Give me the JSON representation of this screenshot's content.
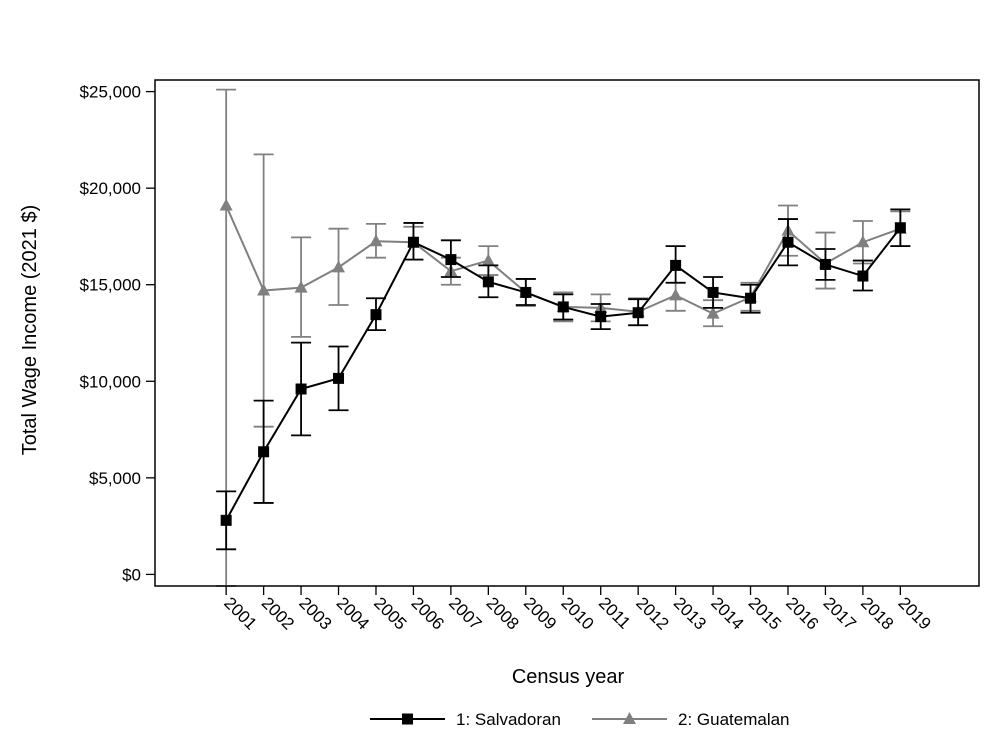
{
  "chart_data": {
    "type": "line",
    "xlabel": "Census year",
    "ylabel": "Total Wage Income (2021 $)",
    "x": [
      2001,
      2002,
      2003,
      2004,
      2005,
      2006,
      2007,
      2008,
      2009,
      2010,
      2011,
      2012,
      2013,
      2014,
      2015,
      2016,
      2017,
      2018,
      2019
    ],
    "x_tick_labels": [
      "2001",
      "2002",
      "2003",
      "2004",
      "2005",
      "2006",
      "2007",
      "2008",
      "2009",
      "2010",
      "2011",
      "2012",
      "2013",
      "2014",
      "2015",
      "2016",
      "2017",
      "2018",
      "2019"
    ],
    "xlim": [
      1999.1,
      2021.1
    ],
    "ylim": [
      -600,
      25600
    ],
    "y_ticks": [
      0,
      5000,
      10000,
      15000,
      20000,
      25000
    ],
    "y_tick_labels": [
      "$0",
      "$5,000",
      "$10,000",
      "$15,000",
      "$20,000",
      "$25,000"
    ],
    "grid": false,
    "legend_position": "bottom",
    "series": [
      {
        "name": "1: Salvadoran",
        "marker": "square",
        "color": "#000000",
        "values": [
          2800,
          6350,
          9600,
          10150,
          13450,
          17200,
          16300,
          15150,
          14600,
          13850,
          13350,
          13550,
          16000,
          14600,
          14300,
          17200,
          16050,
          15450,
          17950
        ],
        "lower": [
          1300,
          3700,
          7200,
          8500,
          12650,
          16300,
          15400,
          14350,
          13950,
          13200,
          12700,
          12900,
          15100,
          13800,
          13550,
          16000,
          15250,
          14700,
          17000
        ],
        "upper": [
          4300,
          9000,
          12000,
          11800,
          14300,
          18200,
          17300,
          16000,
          15300,
          14500,
          14000,
          14250,
          17000,
          15400,
          15000,
          18400,
          16850,
          16250,
          18900
        ]
      },
      {
        "name": "2: Guatemalan",
        "marker": "triangle",
        "color": "#808080",
        "values": [
          19100,
          14700,
          14850,
          15900,
          17250,
          17200,
          15700,
          16250,
          14600,
          13850,
          13800,
          13600,
          14450,
          13500,
          14350,
          17800,
          16100,
          17200,
          17900
        ],
        "lower": [
          -600,
          7650,
          12300,
          13950,
          16400,
          16300,
          15000,
          15500,
          13900,
          13100,
          13100,
          12900,
          13650,
          12850,
          13650,
          16500,
          14800,
          16100,
          17000
        ],
        "upper": [
          25100,
          21750,
          17450,
          17900,
          18150,
          18000,
          16400,
          17000,
          15300,
          14600,
          14500,
          14300,
          15100,
          14200,
          15100,
          19100,
          17700,
          18300,
          18800
        ]
      }
    ]
  }
}
